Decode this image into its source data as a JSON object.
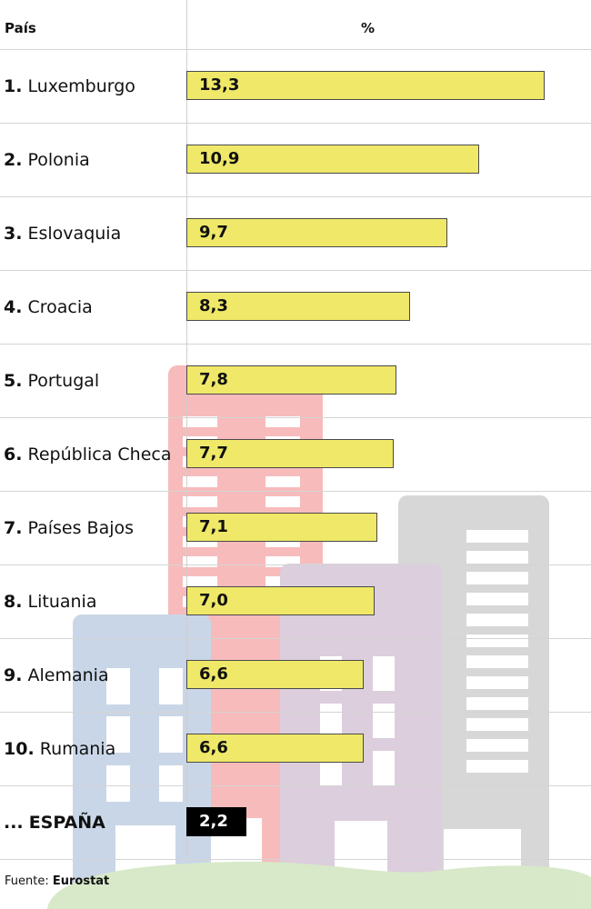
{
  "header": {
    "country": "País",
    "percent": "%"
  },
  "source": {
    "label": "Fuente:",
    "value": "Eurostat"
  },
  "chart_data": {
    "type": "bar",
    "orientation": "horizontal",
    "xlabel": "%",
    "ylabel": "País",
    "xlim": [
      0,
      13.3
    ],
    "categories": [
      "Luxemburgo",
      "Polonia",
      "Eslovaquia",
      "Croacia",
      "Portugal",
      "República Checa",
      "Países Bajos",
      "Lituania",
      "Alemania",
      "Rumania",
      "ESPAÑA"
    ],
    "rows": [
      {
        "rank": "1.",
        "country": "Luxemburgo",
        "value": 13.3,
        "label": "13,3",
        "highlight": false
      },
      {
        "rank": "2.",
        "country": "Polonia",
        "value": 10.9,
        "label": "10,9",
        "highlight": false
      },
      {
        "rank": "3.",
        "country": "Eslovaquia",
        "value": 9.7,
        "label": "9,7",
        "highlight": false
      },
      {
        "rank": "4.",
        "country": "Croacia",
        "value": 8.3,
        "label": "8,3",
        "highlight": false
      },
      {
        "rank": "5.",
        "country": "Portugal",
        "value": 7.8,
        "label": "7,8",
        "highlight": false
      },
      {
        "rank": "6.",
        "country": "República Checa",
        "value": 7.7,
        "label": "7,7",
        "highlight": false
      },
      {
        "rank": "7.",
        "country": "Países Bajos",
        "value": 7.1,
        "label": "7,1",
        "highlight": false
      },
      {
        "rank": "8.",
        "country": "Lituania",
        "value": 7.0,
        "label": "7,0",
        "highlight": false
      },
      {
        "rank": "9.",
        "country": "Alemania",
        "value": 6.6,
        "label": "6,6",
        "highlight": false
      },
      {
        "rank": "10.",
        "country": "Rumania",
        "value": 6.6,
        "label": "6,6",
        "highlight": false
      },
      {
        "rank": "...",
        "country": "ESPAÑA",
        "value": 2.2,
        "label": "2,2",
        "highlight": true
      }
    ],
    "colors": {
      "bar": "#efe868",
      "highlight_bar": "#000000",
      "highlight_text": "#ffffff"
    }
  }
}
